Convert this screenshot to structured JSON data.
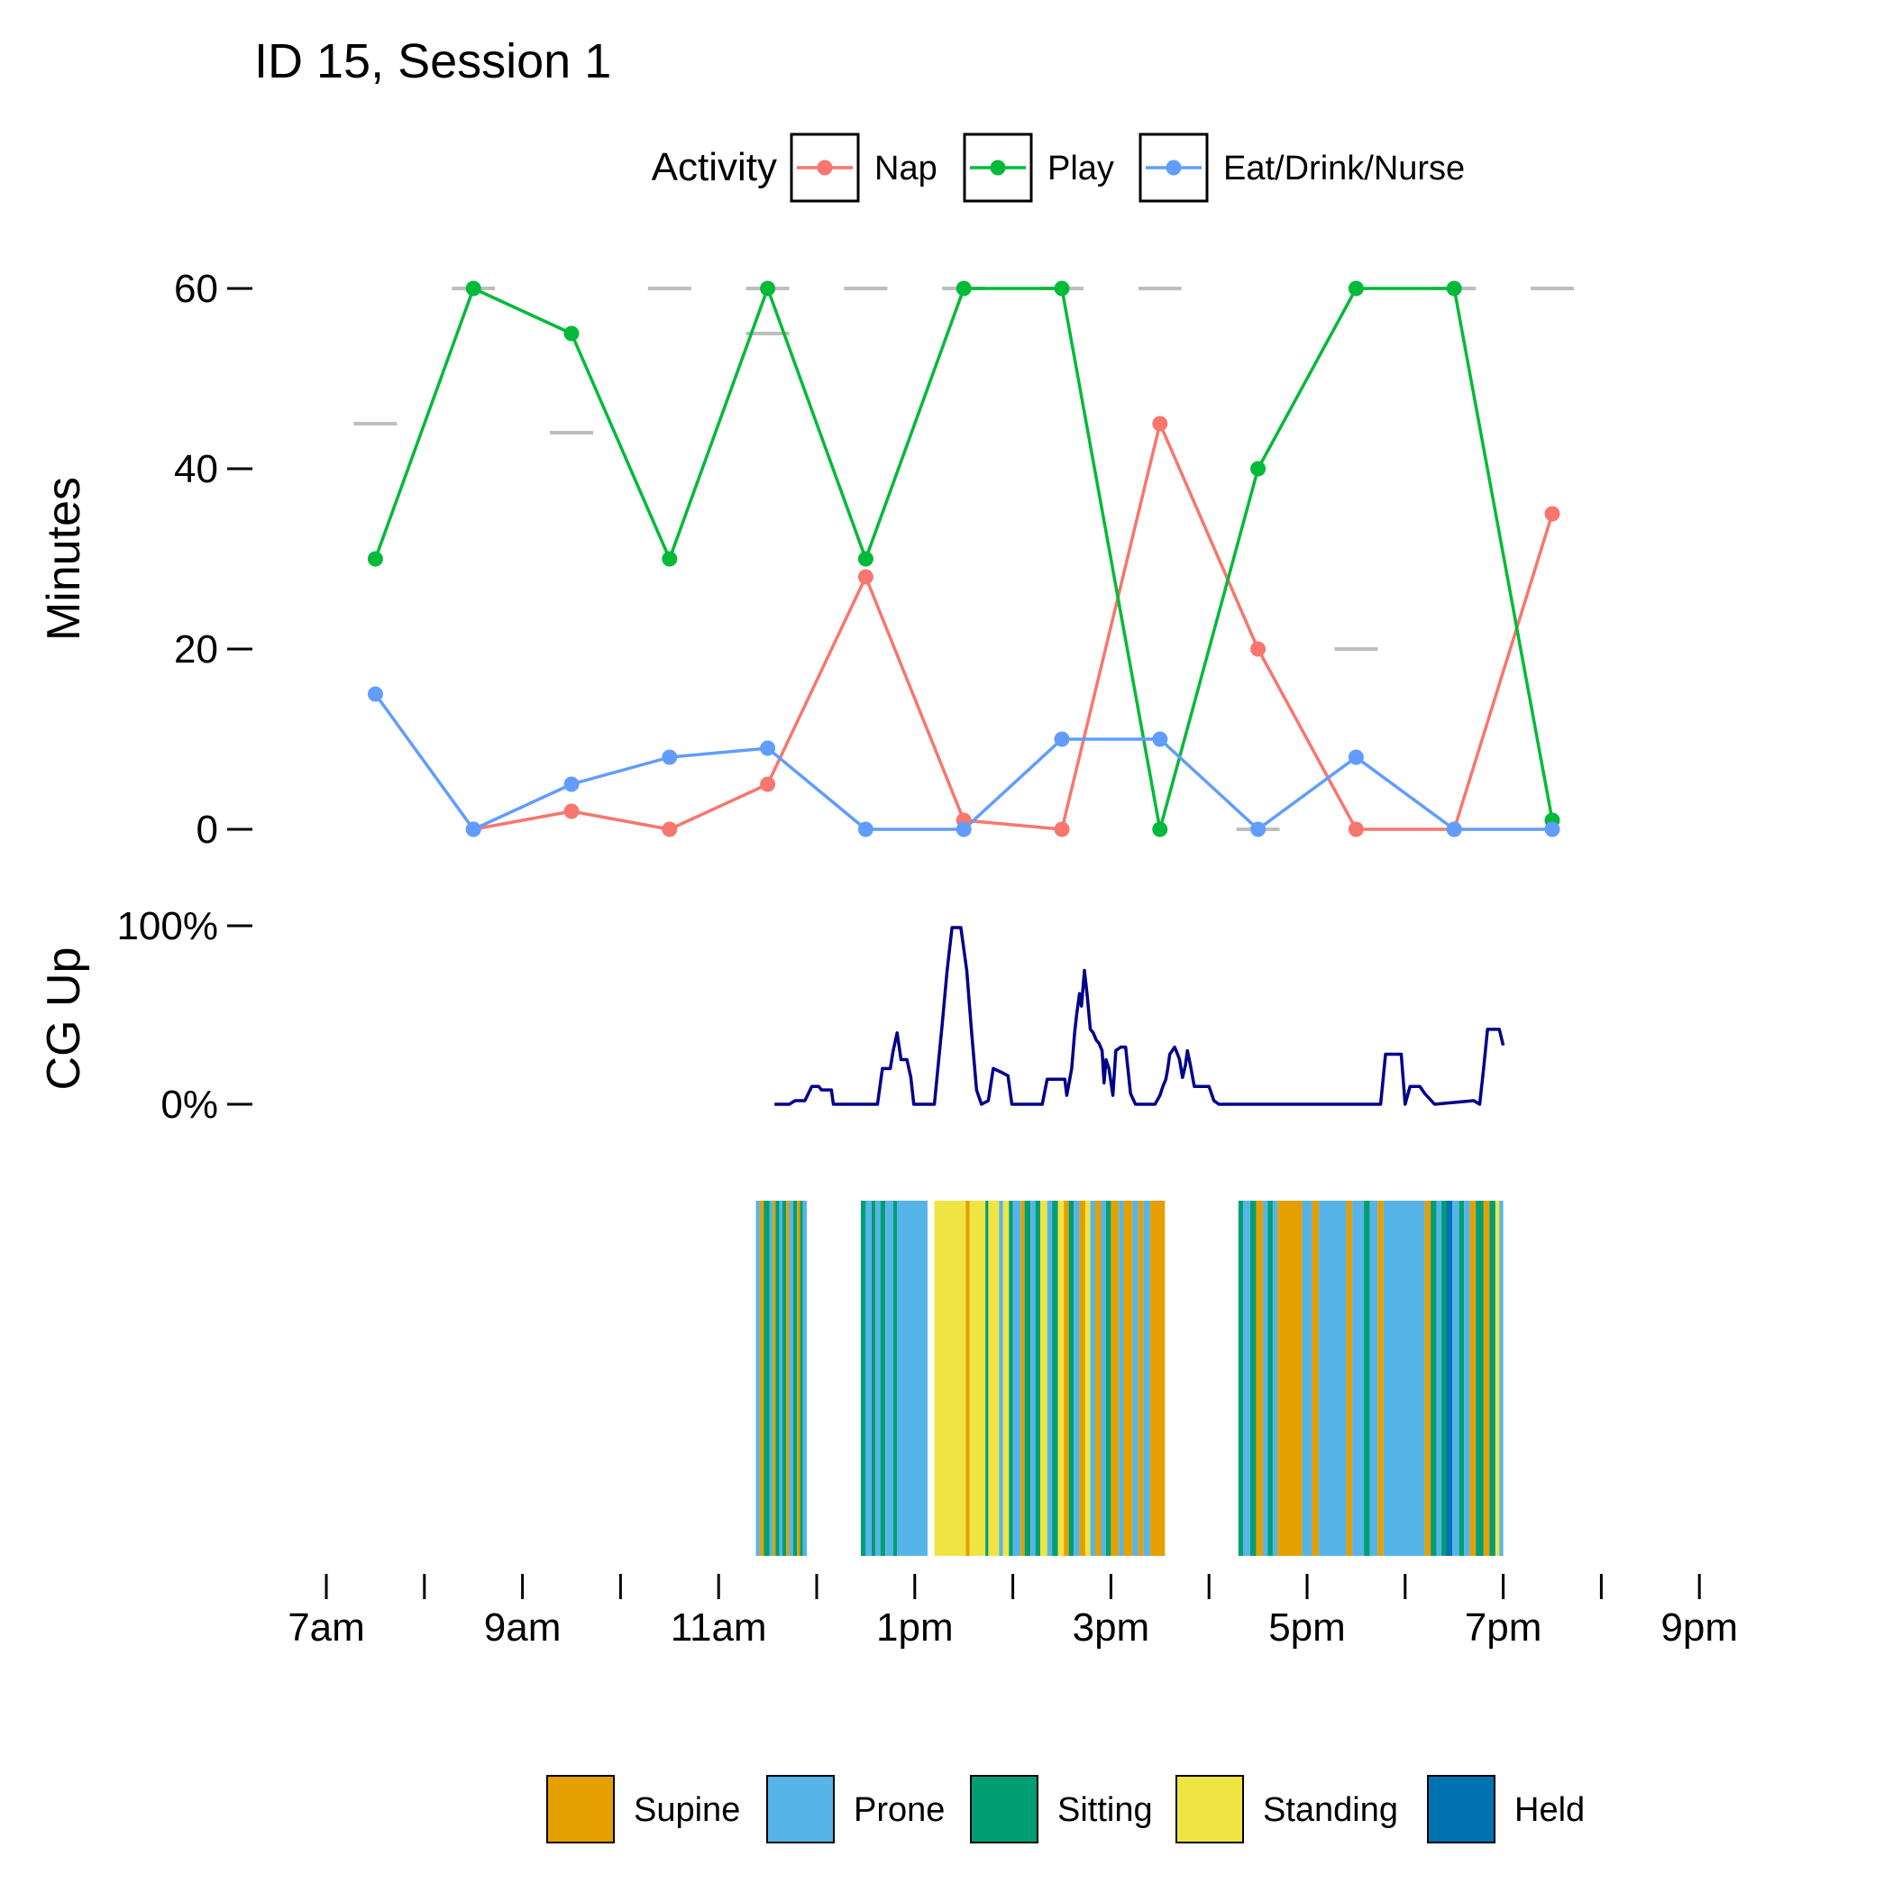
{
  "chart_data": [
    {
      "type": "line",
      "panel": "activity",
      "title": "ID 15, Session 1",
      "xlabel": "",
      "ylabel": "Minutes",
      "ylim": [
        0,
        60
      ],
      "yticks": [
        0,
        20,
        40,
        60
      ],
      "x_hours": [
        7.5,
        8.5,
        9.5,
        10.5,
        11.5,
        12.5,
        13.5,
        14.5,
        15.5,
        16.5,
        17.5,
        18.5,
        19.5
      ],
      "legend": {
        "title": "Activity",
        "position": "top",
        "entries": [
          "Nap",
          "Play",
          "Eat/Drink/Nurse"
        ]
      },
      "series": [
        {
          "name": "Nap",
          "color": "#F8766D",
          "values": [
            null,
            0,
            2,
            0,
            5,
            28,
            1,
            0,
            45,
            20,
            0,
            0,
            35
          ]
        },
        {
          "name": "Play",
          "color": "#00BA38",
          "values": [
            30,
            60,
            55,
            30,
            60,
            30,
            60,
            60,
            0,
            40,
            60,
            60,
            1
          ]
        },
        {
          "name": "Eat/Drink/Nurse",
          "color": "#619CFF",
          "values": [
            15,
            0,
            5,
            8,
            9,
            0,
            0,
            10,
            10,
            0,
            8,
            0,
            0
          ]
        }
      ],
      "reference_marks": {
        "name": "Hour coverage (minutes)",
        "color": "#BEBEBE",
        "values": [
          45,
          60,
          44,
          60,
          60,
          60,
          60,
          60,
          60,
          0,
          20,
          60,
          60
        ],
        "extra": [
          {
            "hour": 11.5,
            "value": 55
          }
        ]
      }
    },
    {
      "type": "line",
      "panel": "cg_up",
      "ylabel": "CG Up",
      "ylim": [
        0,
        100
      ],
      "yticks": [
        "0%",
        "100%"
      ],
      "color": "#00008B",
      "points": [
        [
          11.57,
          0
        ],
        [
          11.72,
          0
        ],
        [
          11.78,
          2
        ],
        [
          11.88,
          2
        ],
        [
          11.95,
          10
        ],
        [
          12.02,
          10
        ],
        [
          12.05,
          8
        ],
        [
          12.15,
          8
        ],
        [
          12.17,
          0
        ],
        [
          12.62,
          0
        ],
        [
          12.67,
          20
        ],
        [
          12.75,
          20
        ],
        [
          12.78,
          30
        ],
        [
          12.82,
          40
        ],
        [
          12.86,
          25
        ],
        [
          12.92,
          25
        ],
        [
          12.96,
          15
        ],
        [
          12.99,
          0
        ],
        [
          13.2,
          0
        ],
        [
          13.28,
          45
        ],
        [
          13.33,
          75
        ],
        [
          13.38,
          99
        ],
        [
          13.47,
          99
        ],
        [
          13.53,
          75
        ],
        [
          13.58,
          40
        ],
        [
          13.63,
          8
        ],
        [
          13.68,
          0
        ],
        [
          13.75,
          2
        ],
        [
          13.8,
          20
        ],
        [
          13.88,
          18
        ],
        [
          13.95,
          16
        ],
        [
          13.99,
          0
        ],
        [
          14.3,
          0
        ],
        [
          14.35,
          14
        ],
        [
          14.47,
          14
        ],
        [
          14.53,
          14
        ],
        [
          14.55,
          5
        ],
        [
          14.6,
          20
        ],
        [
          14.63,
          40
        ],
        [
          14.65,
          50
        ],
        [
          14.68,
          62
        ],
        [
          14.7,
          55
        ],
        [
          14.73,
          75
        ],
        [
          14.76,
          60
        ],
        [
          14.79,
          42
        ],
        [
          14.82,
          40
        ],
        [
          14.85,
          36
        ],
        [
          14.88,
          34
        ],
        [
          14.91,
          30
        ],
        [
          14.93,
          12
        ],
        [
          14.95,
          25
        ],
        [
          14.98,
          20
        ],
        [
          15.02,
          5
        ],
        [
          15.05,
          30
        ],
        [
          15.1,
          32
        ],
        [
          15.15,
          32
        ],
        [
          15.2,
          6
        ],
        [
          15.25,
          0
        ],
        [
          15.45,
          0
        ],
        [
          15.5,
          5
        ],
        [
          15.53,
          10
        ],
        [
          15.56,
          14
        ],
        [
          15.58,
          20
        ],
        [
          15.6,
          28
        ],
        [
          15.65,
          32
        ],
        [
          15.68,
          28
        ],
        [
          15.7,
          25
        ],
        [
          15.73,
          15
        ],
        [
          15.76,
          22
        ],
        [
          15.78,
          30
        ],
        [
          15.81,
          22
        ],
        [
          15.85,
          10
        ],
        [
          15.9,
          10
        ],
        [
          15.95,
          10
        ],
        [
          16.0,
          10
        ],
        [
          16.05,
          2
        ],
        [
          16.1,
          0
        ],
        [
          17.75,
          0
        ],
        [
          17.8,
          28
        ],
        [
          17.96,
          28
        ],
        [
          18.0,
          0
        ],
        [
          18.05,
          10
        ],
        [
          18.15,
          10
        ],
        [
          18.2,
          6
        ],
        [
          18.3,
          0
        ],
        [
          18.7,
          2
        ],
        [
          18.76,
          0
        ],
        [
          18.8,
          20
        ],
        [
          18.84,
          42
        ],
        [
          18.96,
          42
        ],
        [
          19.0,
          33
        ]
      ]
    },
    {
      "type": "heatmap",
      "panel": "posture",
      "xlabel": "",
      "x_axis": {
        "range_hours": [
          7,
          21
        ],
        "tick_hours": [
          7,
          8,
          9,
          10,
          11,
          12,
          13,
          14,
          15,
          16,
          17,
          18,
          19,
          20,
          21
        ],
        "tick_labels": [
          "7am",
          "9am",
          "11am",
          "1pm",
          "3pm",
          "5pm",
          "7pm",
          "9pm"
        ],
        "label_hours": [
          7,
          9,
          11,
          13,
          15,
          17,
          19,
          21
        ]
      },
      "legend": {
        "position": "bottom",
        "entries": [
          "Supine",
          "Prone",
          "Sitting",
          "Standing",
          "Held"
        ]
      },
      "colors": {
        "Supine": "#E69F00",
        "Prone": "#56B4E9",
        "Sitting": "#009E73",
        "Standing": "#F0E442",
        "Held": "#0072B2"
      },
      "segments": [
        [
          11.38,
          11.42,
          "Prone"
        ],
        [
          11.42,
          11.46,
          "Supine"
        ],
        [
          11.46,
          11.52,
          "Sitting"
        ],
        [
          11.52,
          11.55,
          "Prone"
        ],
        [
          11.55,
          11.58,
          "Supine"
        ],
        [
          11.58,
          11.62,
          "Sitting"
        ],
        [
          11.62,
          11.65,
          "Prone"
        ],
        [
          11.65,
          11.69,
          "Sitting"
        ],
        [
          11.69,
          11.72,
          "Supine"
        ],
        [
          11.72,
          11.76,
          "Prone"
        ],
        [
          11.76,
          11.8,
          "Sitting"
        ],
        [
          11.8,
          11.83,
          "Supine"
        ],
        [
          11.83,
          11.86,
          "Sitting"
        ],
        [
          11.86,
          11.9,
          "Prone"
        ],
        [
          12.45,
          12.5,
          "Sitting"
        ],
        [
          12.5,
          12.56,
          "Prone"
        ],
        [
          12.56,
          12.6,
          "Sitting"
        ],
        [
          12.6,
          12.65,
          "Prone"
        ],
        [
          12.65,
          12.7,
          "Sitting"
        ],
        [
          12.7,
          12.78,
          "Prone"
        ],
        [
          12.78,
          12.82,
          "Sitting"
        ],
        [
          12.82,
          13.13,
          "Prone"
        ],
        [
          13.2,
          13.52,
          "Standing"
        ],
        [
          13.52,
          13.56,
          "Supine"
        ],
        [
          13.56,
          13.72,
          "Standing"
        ],
        [
          13.72,
          13.75,
          "Sitting"
        ],
        [
          13.75,
          13.86,
          "Standing"
        ],
        [
          13.86,
          13.9,
          "Prone"
        ],
        [
          13.9,
          13.96,
          "Standing"
        ],
        [
          13.96,
          14.0,
          "Sitting"
        ],
        [
          14.0,
          14.08,
          "Prone"
        ],
        [
          14.08,
          14.12,
          "Supine"
        ],
        [
          14.12,
          14.18,
          "Sitting"
        ],
        [
          14.18,
          14.23,
          "Prone"
        ],
        [
          14.23,
          14.28,
          "Sitting"
        ],
        [
          14.28,
          14.35,
          "Standing"
        ],
        [
          14.35,
          14.4,
          "Prone"
        ],
        [
          14.4,
          14.46,
          "Sitting"
        ],
        [
          14.46,
          14.52,
          "Standing"
        ],
        [
          14.52,
          14.57,
          "Supine"
        ],
        [
          14.57,
          14.62,
          "Sitting"
        ],
        [
          14.62,
          14.68,
          "Prone"
        ],
        [
          14.68,
          14.74,
          "Supine"
        ],
        [
          14.74,
          14.79,
          "Standing"
        ],
        [
          14.79,
          14.84,
          "Prone"
        ],
        [
          14.84,
          14.9,
          "Supine"
        ],
        [
          14.9,
          14.95,
          "Prone"
        ],
        [
          14.95,
          15.0,
          "Sitting"
        ],
        [
          15.0,
          15.08,
          "Supine"
        ],
        [
          15.08,
          15.13,
          "Prone"
        ],
        [
          15.13,
          15.22,
          "Supine"
        ],
        [
          15.22,
          15.28,
          "Prone"
        ],
        [
          15.28,
          15.33,
          "Supine"
        ],
        [
          15.33,
          15.4,
          "Prone"
        ],
        [
          15.4,
          15.55,
          "Supine"
        ],
        [
          16.3,
          16.35,
          "Sitting"
        ],
        [
          16.35,
          16.42,
          "Prone"
        ],
        [
          16.42,
          16.48,
          "Sitting"
        ],
        [
          16.48,
          16.55,
          "Supine"
        ],
        [
          16.55,
          16.6,
          "Prone"
        ],
        [
          16.6,
          16.65,
          "Sitting"
        ],
        [
          16.65,
          16.7,
          "Prone"
        ],
        [
          16.7,
          16.95,
          "Supine"
        ],
        [
          16.95,
          17.05,
          "Prone"
        ],
        [
          17.05,
          17.12,
          "Supine"
        ],
        [
          17.12,
          17.4,
          "Prone"
        ],
        [
          17.4,
          17.46,
          "Supine"
        ],
        [
          17.46,
          17.58,
          "Prone"
        ],
        [
          17.58,
          17.64,
          "Sitting"
        ],
        [
          17.64,
          17.72,
          "Prone"
        ],
        [
          17.72,
          17.78,
          "Supine"
        ],
        [
          17.78,
          18.2,
          "Prone"
        ],
        [
          18.2,
          18.26,
          "Supine"
        ],
        [
          18.26,
          18.32,
          "Sitting"
        ],
        [
          18.32,
          18.37,
          "Prone"
        ],
        [
          18.37,
          18.42,
          "Sitting"
        ],
        [
          18.42,
          18.48,
          "Held"
        ],
        [
          18.48,
          18.55,
          "Prone"
        ],
        [
          18.55,
          18.6,
          "Sitting"
        ],
        [
          18.6,
          18.66,
          "Prone"
        ],
        [
          18.66,
          18.72,
          "Supine"
        ],
        [
          18.72,
          18.8,
          "Sitting"
        ],
        [
          18.8,
          18.86,
          "Supine"
        ],
        [
          18.86,
          18.92,
          "Sitting"
        ],
        [
          18.92,
          18.96,
          "Standing"
        ],
        [
          18.96,
          19.0,
          "Prone"
        ]
      ]
    }
  ]
}
